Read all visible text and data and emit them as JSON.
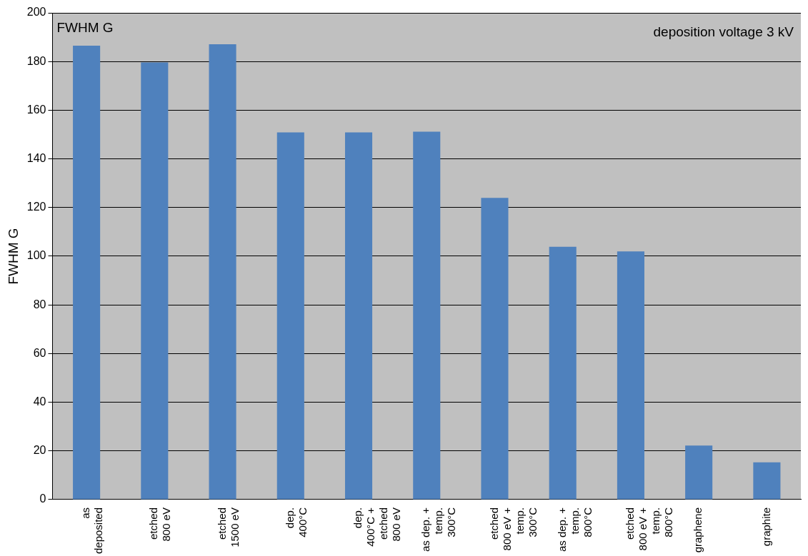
{
  "chart_data": {
    "type": "bar",
    "ylabel": "FWHM G",
    "annotations": [
      "FWHM G",
      "deposition voltage 3 kV"
    ],
    "categories": [
      "as\ndeposited",
      "etched\n800 eV",
      "etched\n1500 eV",
      "dep.\n400°C",
      "dep.\n400°C +\netched\n800 eV",
      "as dep. +\ntemp.\n300°C",
      "etched\n800 eV +\ntemp.\n300°C",
      "as dep. +\ntemp.\n800°C",
      "etched\n800 eV +\ntemp.\n800°C",
      "graphene",
      "graphite"
    ],
    "values": [
      186.5,
      179.6,
      187.1,
      150.9,
      150.9,
      151.2,
      124,
      103.9,
      102,
      22.2,
      15.3
    ],
    "color": "#4f81bd",
    "ylim": [
      0,
      200
    ],
    "yticks": [
      0,
      20,
      40,
      60,
      80,
      100,
      120,
      140,
      160,
      180,
      200
    ],
    "grid": "y"
  }
}
